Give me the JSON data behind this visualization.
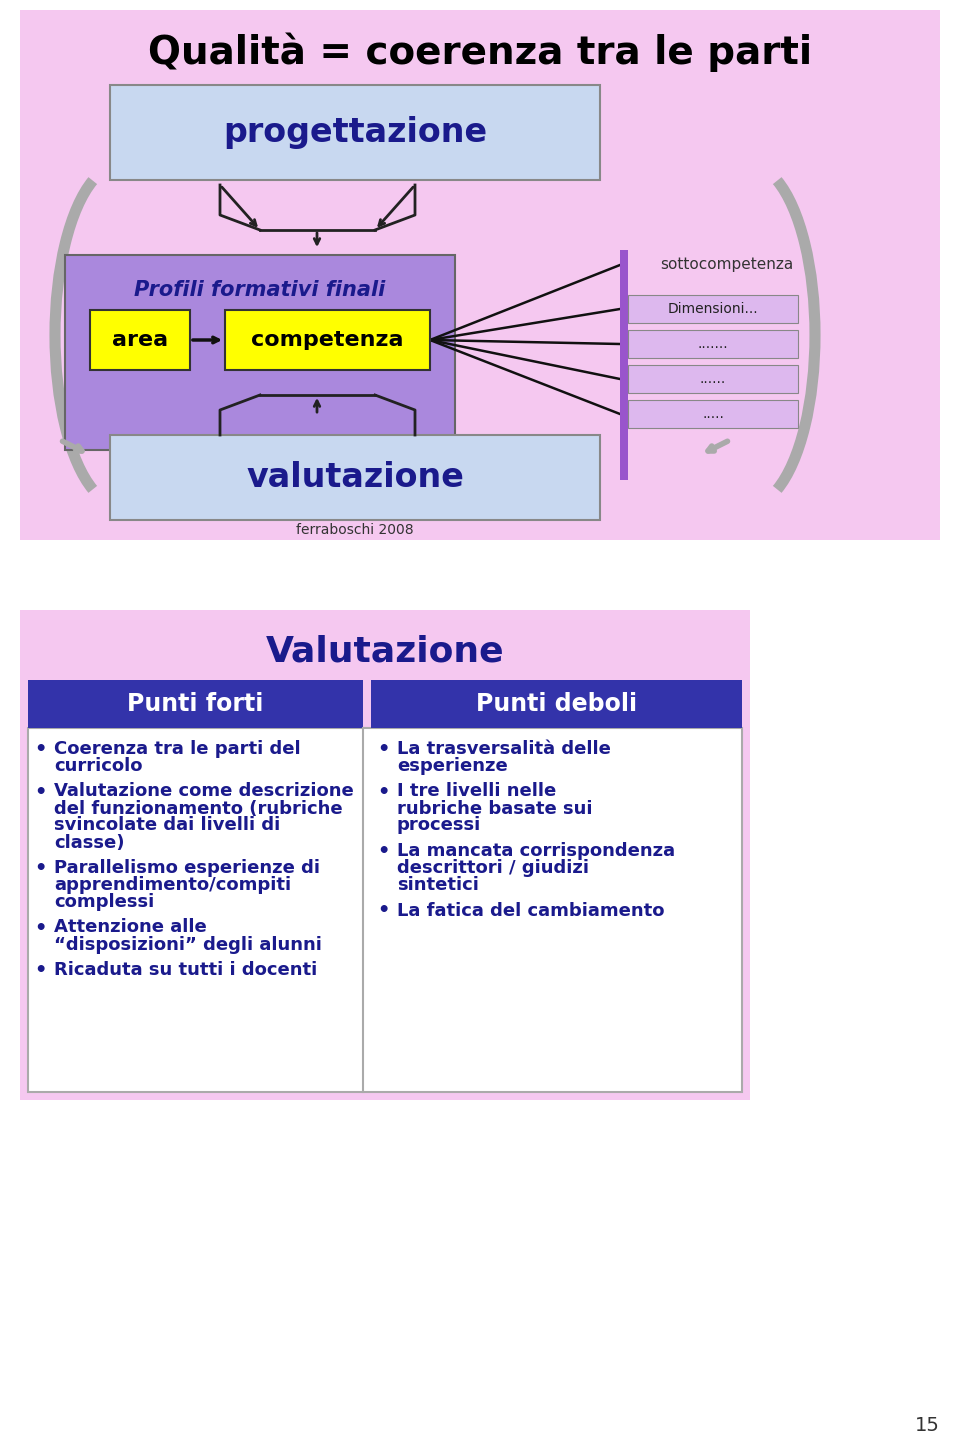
{
  "bg_color": "#F5C8F0",
  "white_bg": "#FFFFFF",
  "title_top": "Qualità = coerenza tra le parti",
  "title_top_color": "#000000",
  "top_panel_bg": "#F5C8F0",
  "progettazione_box_bg": "#C8D8F0",
  "progettazione_text": "progettazione",
  "progettazione_text_color": "#1a1a8c",
  "valutazione_box_bg": "#C8D8F0",
  "valutazione_text": "valutazione",
  "valutazione_text_color": "#1a1a8c",
  "profili_box_bg": "#AA88DD",
  "profili_text": "Profili formativi finali",
  "profili_text_color": "#1a1a8c",
  "area_box_bg": "#FFFF00",
  "area_text": "area",
  "area_text_color": "#000000",
  "competenza_box_bg": "#FFFF00",
  "competenza_text": "competenza",
  "competenza_text_color": "#000000",
  "sotto_label": "sottocompetenza",
  "dim_labels": [
    "Dimensioni...",
    ".......",
    "......",
    "....."
  ],
  "sotto_box_bg": "#FFFFFF",
  "dim_box_bg": "#DDB8EE",
  "ferraboschi": "ferraboschi 2008",
  "bottom_panel_bg": "#F5C8F0",
  "val_title": "Valutazione",
  "val_title_color": "#1a1a8c",
  "header_bg": "#3333AA",
  "header_text_color": "#FFFFFF",
  "punti_forti_header": "Punti forti",
  "punti_deboli_header": "Punti deboli",
  "table_bg": "#FFFFFF",
  "table_border": "#AAAAAA",
  "bullet_color": "#1a1a8c",
  "punti_forti_items": [
    "Coerenza tra le parti del curricolo",
    "Valutazione come descrizione del funzionamento (rubriche svincolate dai livelli di classe)",
    "Parallelismo esperienze di apprendimento/compiti complessi",
    "Attenzione alle “disposizioni” degli alunni",
    "Ricaduta su tutti i docenti"
  ],
  "punti_deboli_items": [
    "La trasversalità delle esperienze",
    "I tre livelli nelle rubriche basate sui processi",
    "La mancata corrispondenza descrittori / giudizi sintetici",
    "La fatica del cambiamento"
  ],
  "arrow_color": "#AAAAAA",
  "purple_bar_color": "#9955CC",
  "slide_num": "15"
}
